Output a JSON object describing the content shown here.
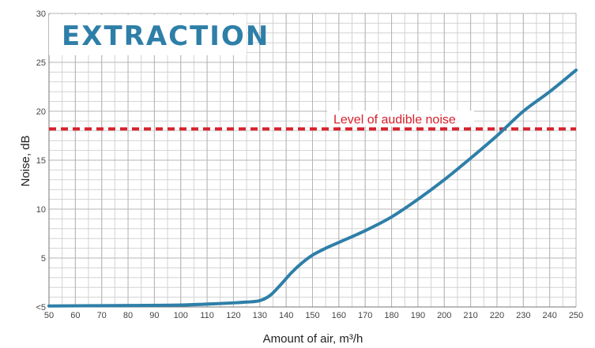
{
  "chart_data": {
    "type": "line",
    "title": "EXTRACTION",
    "xlabel": "Amount of air, m³/h",
    "ylabel": "Noise, dB",
    "xlim": [
      50,
      250
    ],
    "ylim": [
      0,
      30
    ],
    "grid": true,
    "x_ticks": [
      50,
      60,
      70,
      80,
      90,
      100,
      110,
      120,
      130,
      140,
      150,
      160,
      170,
      180,
      190,
      200,
      210,
      220,
      230,
      240,
      250
    ],
    "y_ticks": [
      {
        "value": 0,
        "label": "<5"
      },
      {
        "value": 5,
        "label": "5"
      },
      {
        "value": 10,
        "label": "10"
      },
      {
        "value": 15,
        "label": "15"
      },
      {
        "value": 20,
        "label": "20"
      },
      {
        "value": 25,
        "label": "25"
      },
      {
        "value": 30,
        "label": "30"
      }
    ],
    "series": [
      {
        "color": "#2e7fa8",
        "points": [
          [
            50,
            0.1
          ],
          [
            80,
            0.15
          ],
          [
            100,
            0.2
          ],
          [
            115,
            0.35
          ],
          [
            125,
            0.5
          ],
          [
            130,
            0.65
          ],
          [
            134,
            1.2
          ],
          [
            138,
            2.3
          ],
          [
            142,
            3.5
          ],
          [
            146,
            4.5
          ],
          [
            150,
            5.3
          ],
          [
            155,
            6.0
          ],
          [
            160,
            6.6
          ],
          [
            170,
            7.8
          ],
          [
            180,
            9.2
          ],
          [
            190,
            11.0
          ],
          [
            200,
            13.0
          ],
          [
            210,
            15.2
          ],
          [
            220,
            17.5
          ],
          [
            230,
            20.0
          ],
          [
            240,
            22.0
          ],
          [
            250,
            24.2
          ]
        ]
      }
    ],
    "reference_line": {
      "label": "Level of audible noise",
      "y": 18.2,
      "color": "#d7202b"
    }
  }
}
